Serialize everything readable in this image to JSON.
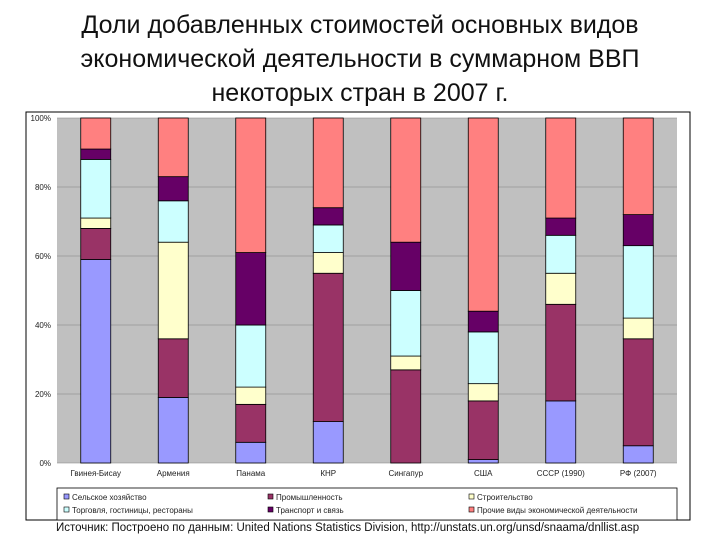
{
  "title_lines": [
    "Доли добавленных стоимостей основных видов",
    "экономической деятельности в суммарном ВВП",
    "некоторых стран в 2007 г."
  ],
  "source": "Источник: Построено по данным: United Nations Statistics Division, http://unstats.un.org/unsd/snaama/dnllist.asp",
  "chart_data": {
    "type": "bar",
    "stacked": "percent",
    "categories": [
      "Гвинея-Бисау",
      "Армения",
      "Панама",
      "КНР",
      "Сингапур",
      "США",
      "СССР (1990)",
      "РФ (2007)"
    ],
    "y_ticks": [
      "0%",
      "20%",
      "40%",
      "60%",
      "80%",
      "100%"
    ],
    "ylim": [
      0,
      100
    ],
    "grid": true,
    "legend_position": "bottom",
    "series": [
      {
        "name": "Сельское хозяйство",
        "color": "#9999ff",
        "values": [
          59,
          19,
          6,
          12,
          0,
          1,
          18,
          5
        ]
      },
      {
        "name": "Промышленность",
        "color": "#993366",
        "values": [
          9,
          17,
          11,
          43,
          27,
          17,
          28,
          31
        ]
      },
      {
        "name": "Строительство",
        "color": "#ffffcc",
        "values": [
          3,
          28,
          5,
          6,
          4,
          5,
          9,
          6
        ]
      },
      {
        "name": "Торговля, гостиницы, рестораны",
        "color": "#ccffff",
        "values": [
          17,
          12,
          18,
          8,
          19,
          15,
          11,
          21
        ]
      },
      {
        "name": "Транспорт и связь",
        "color": "#660066",
        "values": [
          3,
          7,
          21,
          5,
          14,
          6,
          5,
          9
        ]
      },
      {
        "name": "Прочие виды экономической деятельности",
        "color": "#ff8080",
        "values": [
          9,
          17,
          39,
          26,
          36,
          56,
          29,
          28
        ]
      }
    ]
  }
}
